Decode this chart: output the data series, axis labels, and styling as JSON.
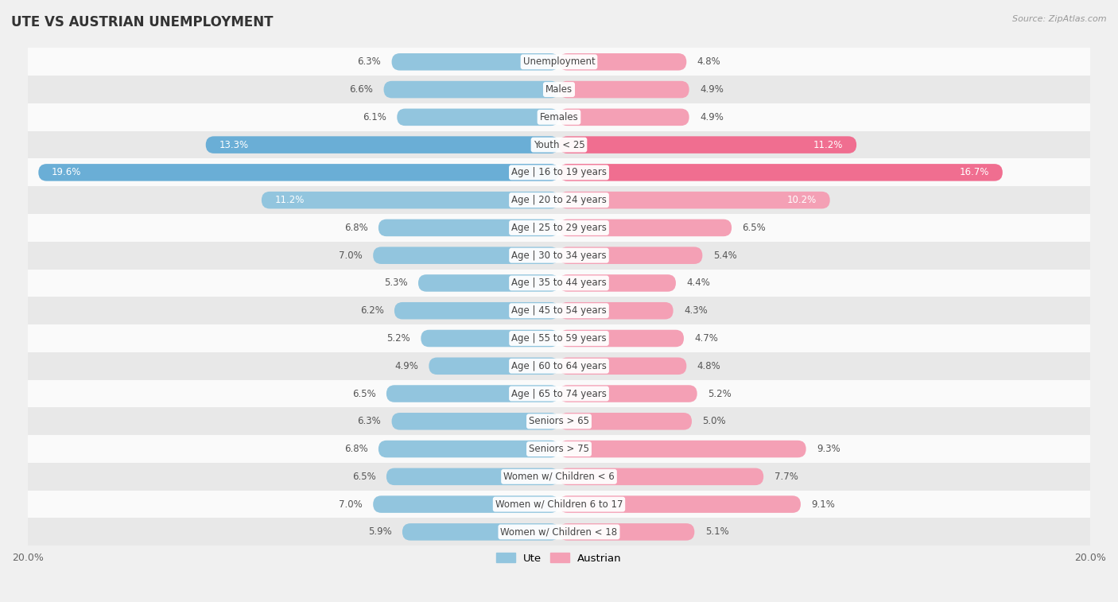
{
  "title": "UTE VS AUSTRIAN UNEMPLOYMENT",
  "source": "Source: ZipAtlas.com",
  "categories": [
    "Unemployment",
    "Males",
    "Females",
    "Youth < 25",
    "Age | 16 to 19 years",
    "Age | 20 to 24 years",
    "Age | 25 to 29 years",
    "Age | 30 to 34 years",
    "Age | 35 to 44 years",
    "Age | 45 to 54 years",
    "Age | 55 to 59 years",
    "Age | 60 to 64 years",
    "Age | 65 to 74 years",
    "Seniors > 65",
    "Seniors > 75",
    "Women w/ Children < 6",
    "Women w/ Children 6 to 17",
    "Women w/ Children < 18"
  ],
  "ute_values": [
    6.3,
    6.6,
    6.1,
    13.3,
    19.6,
    11.2,
    6.8,
    7.0,
    5.3,
    6.2,
    5.2,
    4.9,
    6.5,
    6.3,
    6.8,
    6.5,
    7.0,
    5.9
  ],
  "austrian_values": [
    4.8,
    4.9,
    4.9,
    11.2,
    16.7,
    10.2,
    6.5,
    5.4,
    4.4,
    4.3,
    4.7,
    4.8,
    5.2,
    5.0,
    9.3,
    7.7,
    9.1,
    5.1
  ],
  "ute_color_normal": "#92C5DE",
  "ute_color_strong": "#6AAED6",
  "austrian_color_normal": "#F4A0B5",
  "austrian_color_strong": "#F06E90",
  "label_bg_color": "#FFFFFF",
  "bar_height": 0.62,
  "xlim": 20.0,
  "bg_color": "#F0F0F0",
  "row_white_color": "#FAFAFA",
  "row_gray_color": "#E8E8E8",
  "title_fontsize": 12,
  "label_fontsize": 8.5,
  "value_fontsize": 8.5,
  "tick_fontsize": 9,
  "inner_label_threshold": 10.0
}
